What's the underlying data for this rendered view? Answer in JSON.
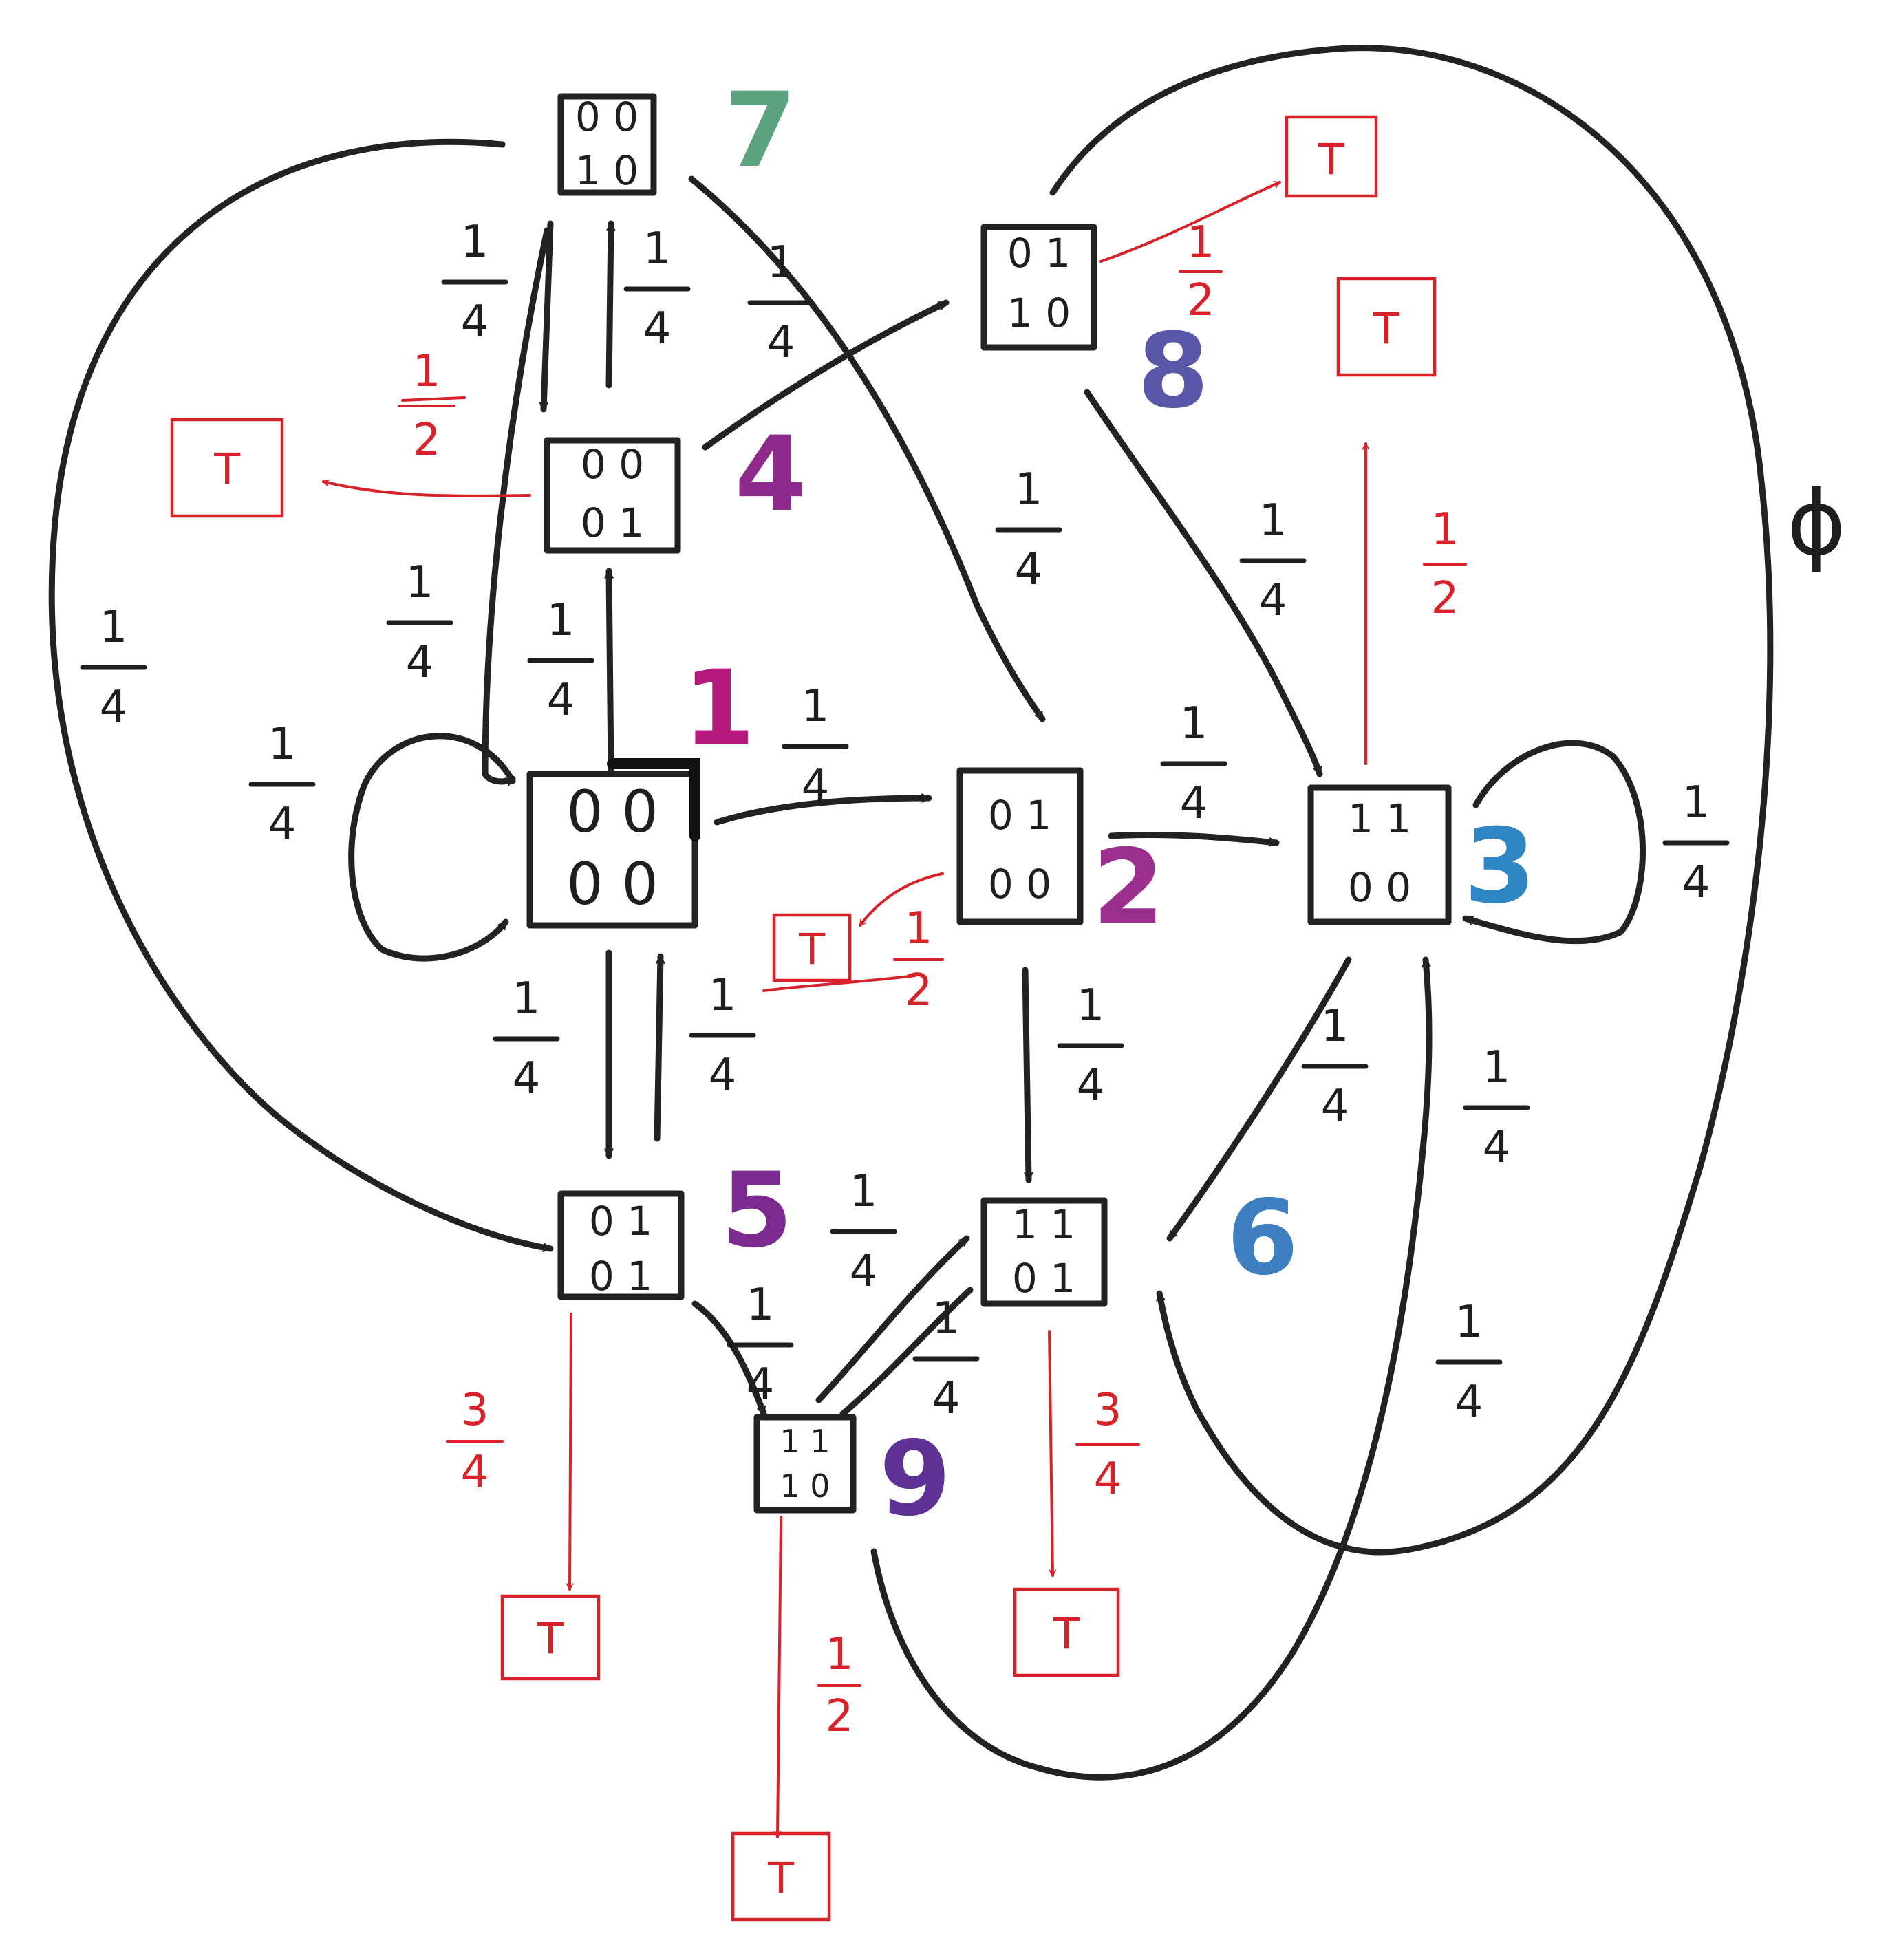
{
  "states": {
    "s1": {
      "number": "1",
      "r1": "0 0",
      "r2": "0 0"
    },
    "s2": {
      "number": "2",
      "r1": "0 1",
      "r2": "0 0"
    },
    "s3": {
      "number": "3",
      "r1": "1 1",
      "r2": "0 0"
    },
    "s4": {
      "number": "4",
      "r1": "0 0",
      "r2": "0 1"
    },
    "s5": {
      "number": "5",
      "r1": "0 1",
      "r2": "0 1"
    },
    "s6": {
      "number": "6",
      "r1": "1 1",
      "r2": "0 1"
    },
    "s7": {
      "number": "7",
      "r1": "0 0",
      "r2": "1 0"
    },
    "s8": {
      "number": "8",
      "r1": "0 1",
      "r2": "1 0"
    },
    "s9": {
      "number": "9",
      "r1": "1 1",
      "r2": "1 0"
    }
  },
  "terminal_label": "T",
  "empty_symbol": "ϕ",
  "fractions": {
    "quarter": {
      "num": "1",
      "den": "4"
    },
    "half": {
      "num": "1",
      "den": "2"
    },
    "three_quarters": {
      "num": "3",
      "den": "4"
    }
  },
  "colors": {
    "ink": "#222222",
    "terminal_red": "#d8222a",
    "s1": "#b5197f",
    "s2": "#9a2f8e",
    "s3": "#2f86c2",
    "s4": "#8f2a8d",
    "s5": "#7b2a8f",
    "s6": "#3d7fc0",
    "s7": "#5aa37e",
    "s8": "#5a56a8",
    "s9": "#5e3294"
  }
}
